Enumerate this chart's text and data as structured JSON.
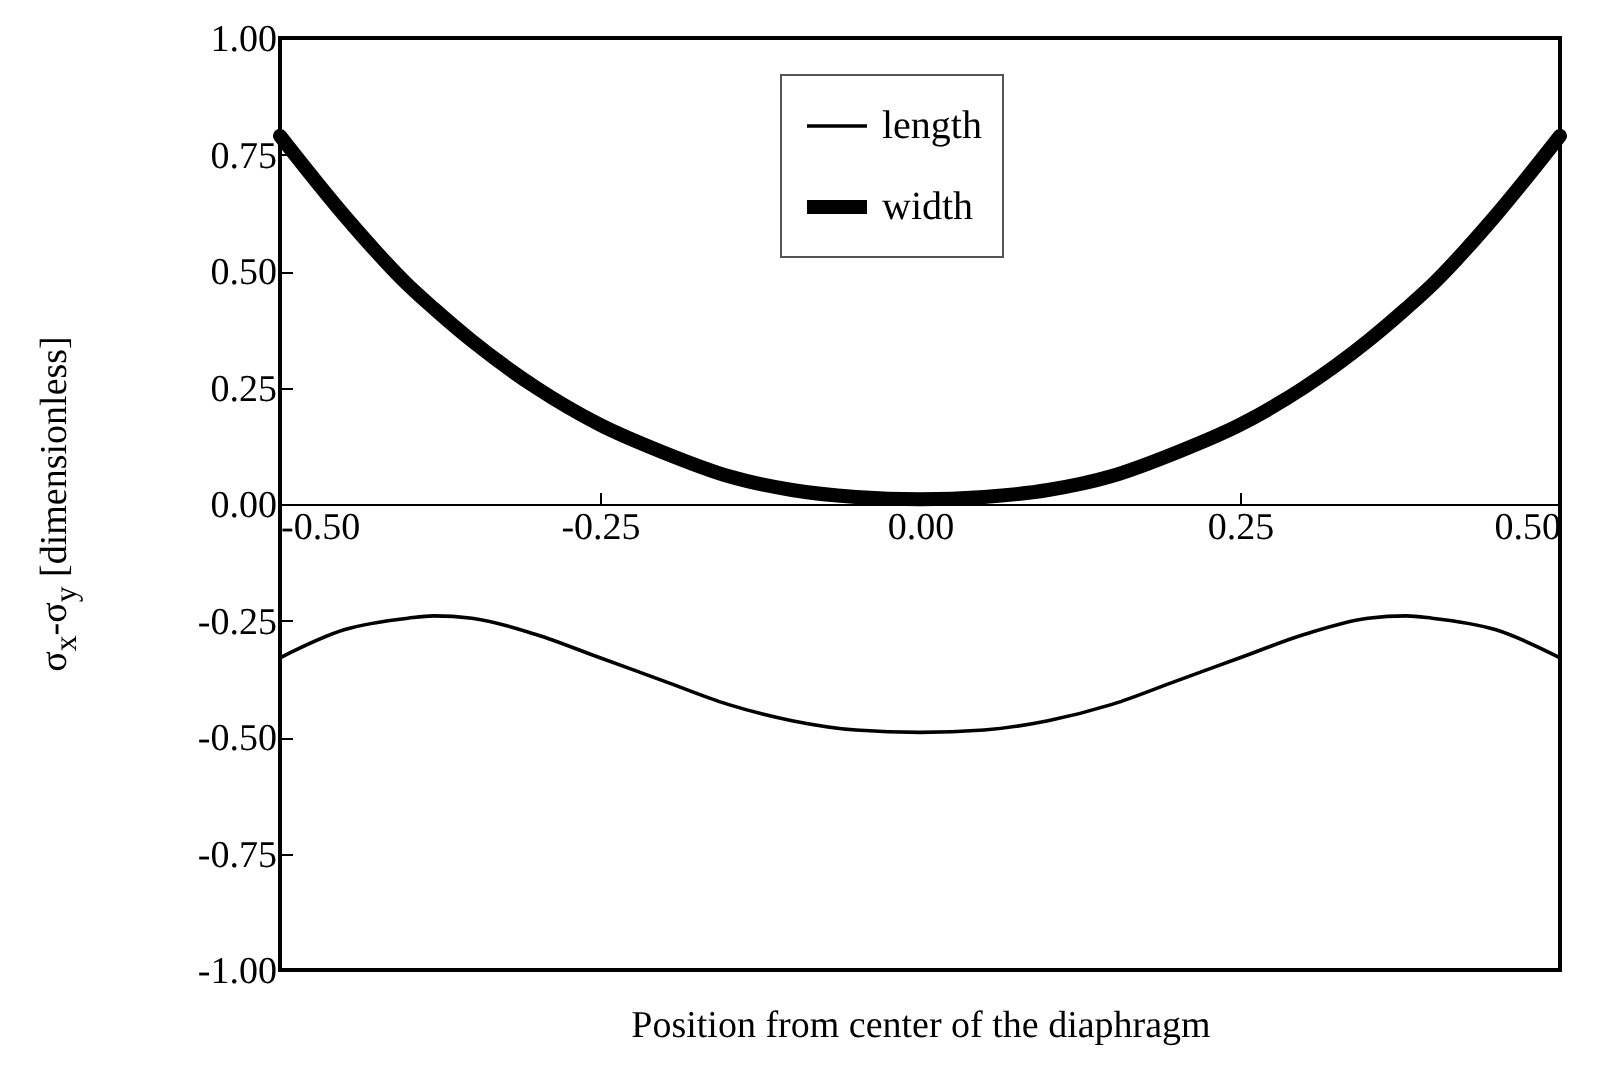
{
  "chart_data": {
    "type": "line",
    "xlabel": "Position from center of the diaphragm",
    "ylabel": "σ$_{x}$-σ$_{y}$ [dimensionless]",
    "x": [
      -0.5,
      -0.45,
      -0.4,
      -0.38,
      -0.35,
      -0.3,
      -0.25,
      -0.2,
      -0.15,
      -0.1,
      -0.05,
      0,
      0.05,
      0.1,
      0.15,
      0.2,
      0.25,
      0.3,
      0.35,
      0.38,
      0.4,
      0.45,
      0.5
    ],
    "series": [
      {
        "name": "length",
        "color": "#000000",
        "values": [
          -0.33,
          -0.27,
          -0.245,
          -0.24,
          -0.245,
          -0.28,
          -0.33,
          -0.38,
          -0.43,
          -0.465,
          -0.485,
          -0.49,
          -0.485,
          -0.465,
          -0.43,
          -0.38,
          -0.33,
          -0.28,
          -0.245,
          -0.24,
          -0.245,
          -0.27,
          -0.33
        ]
      },
      {
        "name": "width",
        "color": "#000000",
        "values": [
          0.79,
          0.62,
          0.47,
          0.42,
          0.35,
          0.25,
          0.17,
          0.11,
          0.06,
          0.03,
          0.015,
          0.01,
          0.015,
          0.03,
          0.06,
          0.11,
          0.17,
          0.25,
          0.35,
          0.42,
          0.47,
          0.62,
          0.79
        ]
      }
    ],
    "xlim": [
      -0.5,
      0.5
    ],
    "xticks": [
      {
        "value": -0.5,
        "label": "-0.50"
      },
      {
        "value": -0.25,
        "label": "-0.25"
      },
      {
        "value": 0,
        "label": "0.00"
      },
      {
        "value": 0.25,
        "label": "0.25"
      },
      {
        "value": 0.5,
        "label": "0.50"
      }
    ],
    "ylim": [
      -1,
      1
    ],
    "yticks": [
      {
        "value": -1,
        "label": "-1.00"
      },
      {
        "value": -0.75,
        "label": "-0.75"
      },
      {
        "value": -0.5,
        "label": "-0.50"
      },
      {
        "value": -0.25,
        "label": "-0.25"
      },
      {
        "value": 0,
        "label": "0.00"
      },
      {
        "value": 0.25,
        "label": "0.25"
      },
      {
        "value": 0.5,
        "label": "0.50"
      },
      {
        "value": 0.75,
        "label": "0.75"
      },
      {
        "value": 1,
        "label": "1.00"
      }
    ],
    "grid": false,
    "legend": "top",
    "marker": "none",
    "line_style": "solid"
  }
}
